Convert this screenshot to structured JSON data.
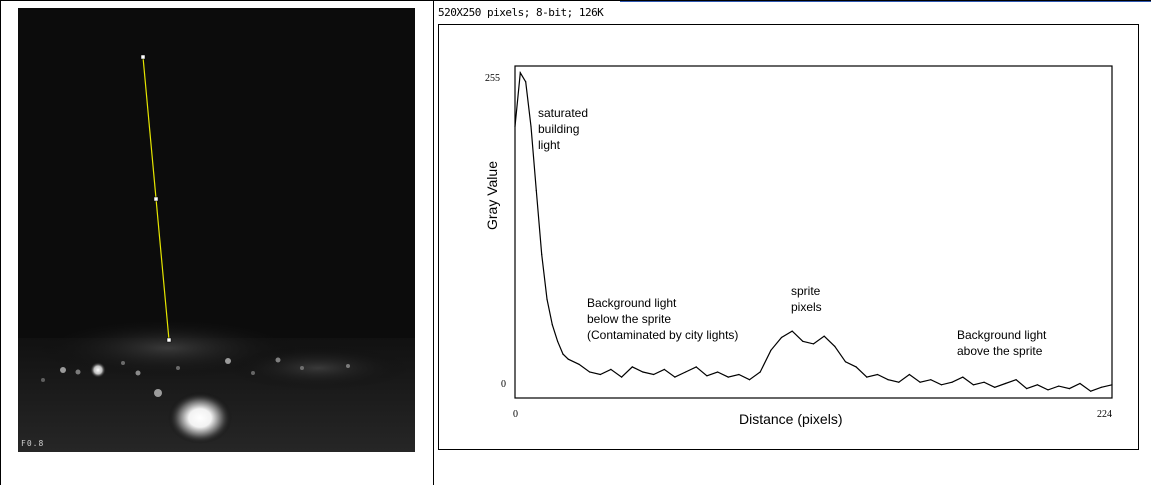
{
  "camera": {
    "frame_label": "F0.8"
  },
  "image_info": {
    "text": "520X250 pixels; 8-bit; 126K"
  },
  "plot": {
    "x_label": "Distance (pixels)",
    "y_label": "Gray Value",
    "annotations": {
      "saturated": "saturated\nbuilding\nlight",
      "bg_below": "Background light\nbelow the sprite\n(Contaminated by city lights)",
      "sprite": "sprite\npixels",
      "bg_above": "Background light\nabove the sprite"
    }
  },
  "chart_data": {
    "type": "line",
    "title": "",
    "xlabel": "Distance (pixels)",
    "ylabel": "Gray Value",
    "xlim": [
      0,
      224
    ],
    "ylim": [
      0,
      255
    ],
    "x_ticks": [
      "0",
      "224"
    ],
    "y_ticks": [
      "0",
      "255"
    ],
    "series": [
      {
        "x": [
          0,
          2,
          4,
          6,
          8,
          10,
          12,
          14,
          16,
          18,
          20,
          24,
          28,
          32,
          36,
          40,
          44,
          48,
          52,
          56,
          60,
          64,
          68,
          72,
          76,
          80,
          84,
          88,
          92,
          96,
          100,
          104,
          108,
          112,
          116,
          120,
          124,
          128,
          132,
          136,
          140,
          144,
          148,
          152,
          156,
          160,
          164,
          168,
          172,
          176,
          180,
          184,
          188,
          192,
          196,
          200,
          204,
          208,
          212,
          216,
          220,
          224
        ],
        "y": [
          210,
          252,
          245,
          210,
          160,
          110,
          75,
          55,
          42,
          32,
          28,
          24,
          18,
          16,
          20,
          14,
          22,
          18,
          16,
          20,
          14,
          18,
          22,
          15,
          18,
          14,
          16,
          12,
          18,
          35,
          45,
          50,
          42,
          40,
          46,
          38,
          26,
          22,
          14,
          16,
          12,
          10,
          16,
          10,
          12,
          8,
          10,
          14,
          8,
          10,
          6,
          9,
          12,
          5,
          8,
          4,
          7,
          5,
          9,
          3,
          6,
          8
        ]
      }
    ]
  }
}
